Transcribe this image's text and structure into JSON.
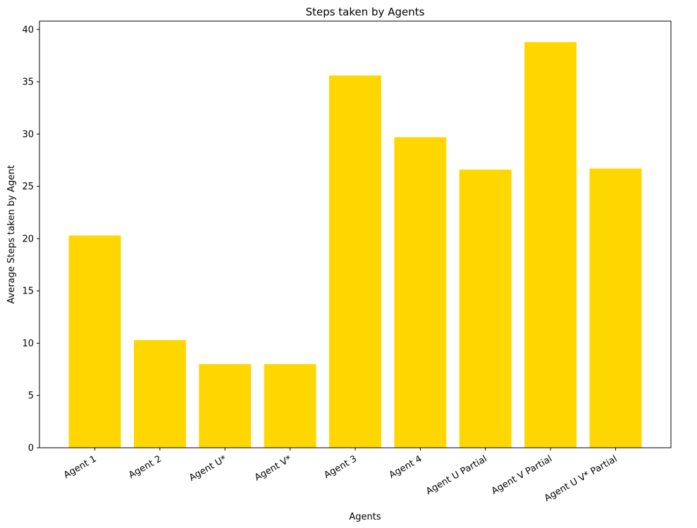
{
  "chart_data": {
    "type": "bar",
    "title": "Steps taken by Agents",
    "xlabel": "Agents",
    "ylabel": "Average Steps taken by Agent",
    "categories": [
      "Agent 1",
      "Agent 2",
      "Agent U*",
      "Agent V*",
      "Agent 3",
      "Agent 4",
      "Agent U Partial",
      "Agent V Partial",
      "Agent U V* Partial"
    ],
    "values": [
      20.3,
      10.3,
      8.0,
      8.0,
      35.6,
      29.7,
      26.6,
      38.8,
      26.7
    ],
    "ylim": [
      0,
      40.8
    ],
    "yticks": [
      0,
      5,
      10,
      15,
      20,
      25,
      30,
      35,
      40
    ],
    "bar_color": "#FFD700",
    "grid": false,
    "legend": "none"
  }
}
